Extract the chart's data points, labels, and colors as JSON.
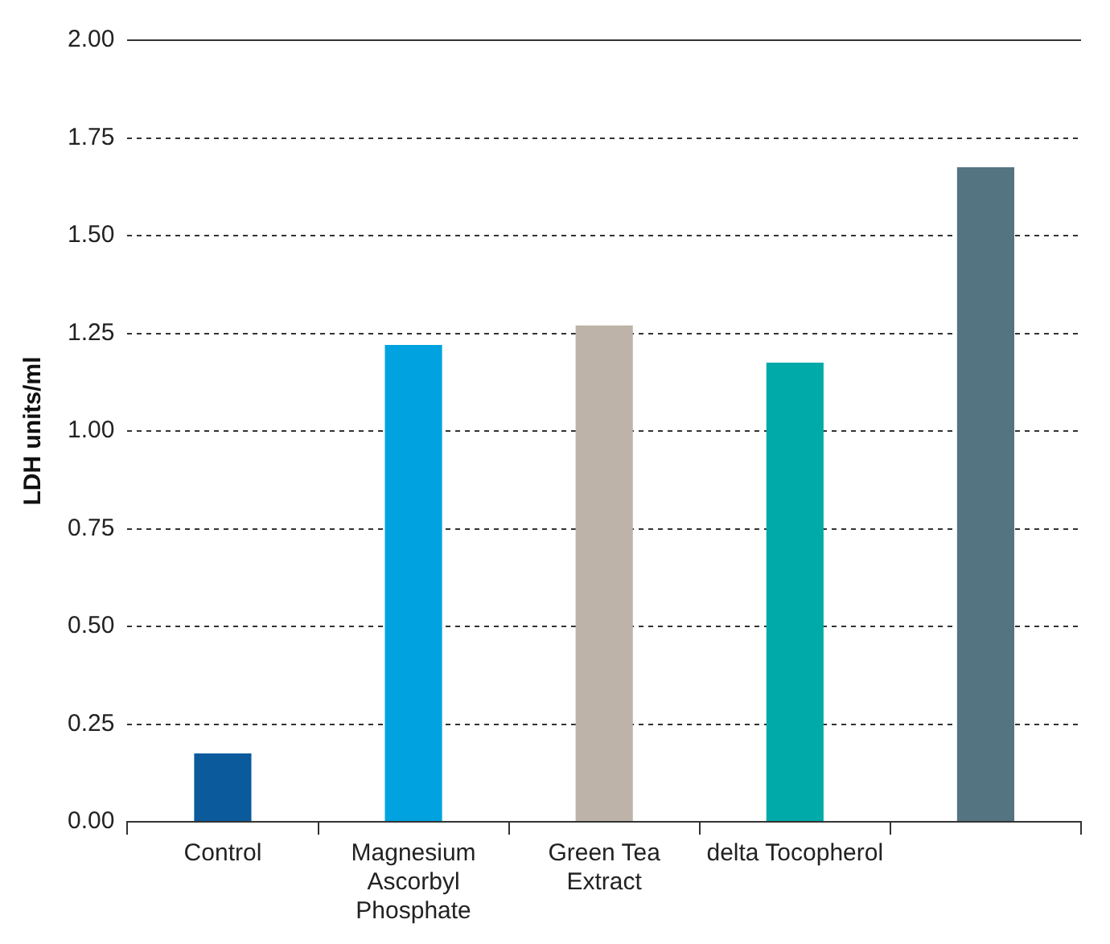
{
  "chart_data": {
    "type": "bar",
    "ylabel": "LDH units/ml",
    "categories": [
      "Control",
      "Magnesium Ascorbyl Phosphate",
      "Green Tea Extract",
      "delta Tocopherol",
      null
    ],
    "values": [
      0.175,
      1.22,
      1.27,
      1.175,
      1.675
    ],
    "colors": [
      "#0a5a9c",
      "#00a3e0",
      "#bdb3a8",
      "#00aaa8",
      "#557482"
    ],
    "ylim": [
      0,
      2
    ],
    "yticks": [
      {
        "value": 0,
        "label": "0.00"
      },
      {
        "value": 0.25,
        "label": "0.25"
      },
      {
        "value": 0.5,
        "label": "0.50"
      },
      {
        "value": 0.75,
        "label": "0.75"
      },
      {
        "value": 1,
        "label": "1.00"
      },
      {
        "value": 1.25,
        "label": "1.25"
      },
      {
        "value": 1.5,
        "label": "1.50"
      },
      {
        "value": 1.75,
        "label": "1.75"
      },
      {
        "value": 2,
        "label": "2.00"
      }
    ],
    "grid": "y",
    "legend": false
  }
}
